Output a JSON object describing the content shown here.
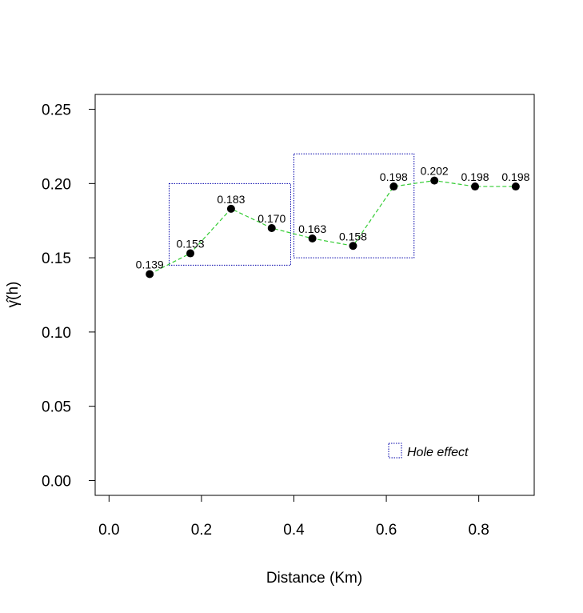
{
  "chart_data": {
    "type": "line",
    "xlabel": "Distance (Km)",
    "ylabel": "γ̂(h)",
    "xlim": [
      -0.03,
      0.92
    ],
    "ylim": [
      -0.01,
      0.26
    ],
    "x_ticks": [
      0.0,
      0.2,
      0.4,
      0.6,
      0.8
    ],
    "x_tick_labels": [
      "0.0",
      "0.2",
      "0.4",
      "0.6",
      "0.8"
    ],
    "y_ticks": [
      0.0,
      0.05,
      0.1,
      0.15,
      0.2,
      0.25
    ],
    "y_tick_labels": [
      "0.00",
      "0.05",
      "0.10",
      "0.15",
      "0.20",
      "0.25"
    ],
    "grid": false,
    "series": [
      {
        "x": [
          0.088,
          0.176,
          0.264,
          0.352,
          0.44,
          0.528,
          0.616,
          0.704,
          0.792,
          0.88
        ],
        "values": [
          0.139,
          0.153,
          0.183,
          0.17,
          0.163,
          0.158,
          0.198,
          0.202,
          0.198,
          0.198
        ],
        "labels": [
          "0.139",
          "0.153",
          "0.183",
          "0.170",
          "0.163",
          "0.158",
          "0.198",
          "0.202",
          "0.198",
          "0.198"
        ],
        "line_color": "#33cc33",
        "line_style": "dashed",
        "marker_color": "#000000"
      }
    ],
    "regions": [
      {
        "x": [
          0.13,
          0.393
        ],
        "y": [
          0.145,
          0.2
        ]
      },
      {
        "x": [
          0.4,
          0.66
        ],
        "y": [
          0.15,
          0.22
        ]
      }
    ],
    "region_color": "#0000aa",
    "legend": {
      "label": "Hole effect",
      "placement": "bottom-right"
    }
  }
}
